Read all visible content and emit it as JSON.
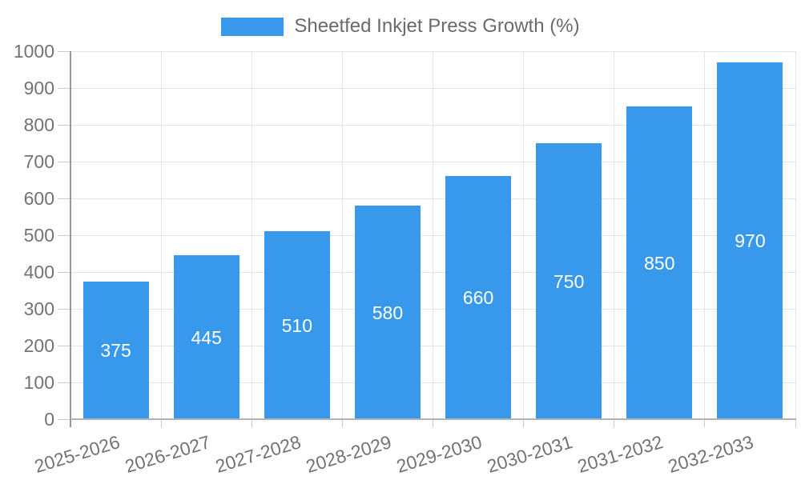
{
  "legend": {
    "label": "Sheetfed Inkjet Press Growth (%)"
  },
  "chart_data": {
    "type": "bar",
    "title": "Sheetfed Inkjet Press Growth (%)",
    "categories": [
      "2025-2026",
      "2026-2027",
      "2027-2028",
      "2028-2029",
      "2029-2030",
      "2030-2031",
      "2031-2032",
      "2032-2033"
    ],
    "values": [
      375,
      445,
      510,
      580,
      660,
      750,
      850,
      970
    ],
    "xlabel": "",
    "ylabel": "",
    "ylim": [
      0,
      1000
    ],
    "yticks": [
      0,
      100,
      200,
      300,
      400,
      500,
      600,
      700,
      800,
      900,
      1000
    ],
    "grid": true,
    "legend_position": "top-center",
    "value_label_position": "inside-center"
  },
  "colors": {
    "bar": "#3899EC",
    "grid_line": "#e4e4e4",
    "y_axis_line": "#979797",
    "x_axis_line": "#b3b3b3",
    "tick_mark": "#cccccc",
    "tick_text": "#737373",
    "legend_text": "#6a6a6a",
    "value_label": "#ffffff",
    "background": "#ffffff"
  }
}
